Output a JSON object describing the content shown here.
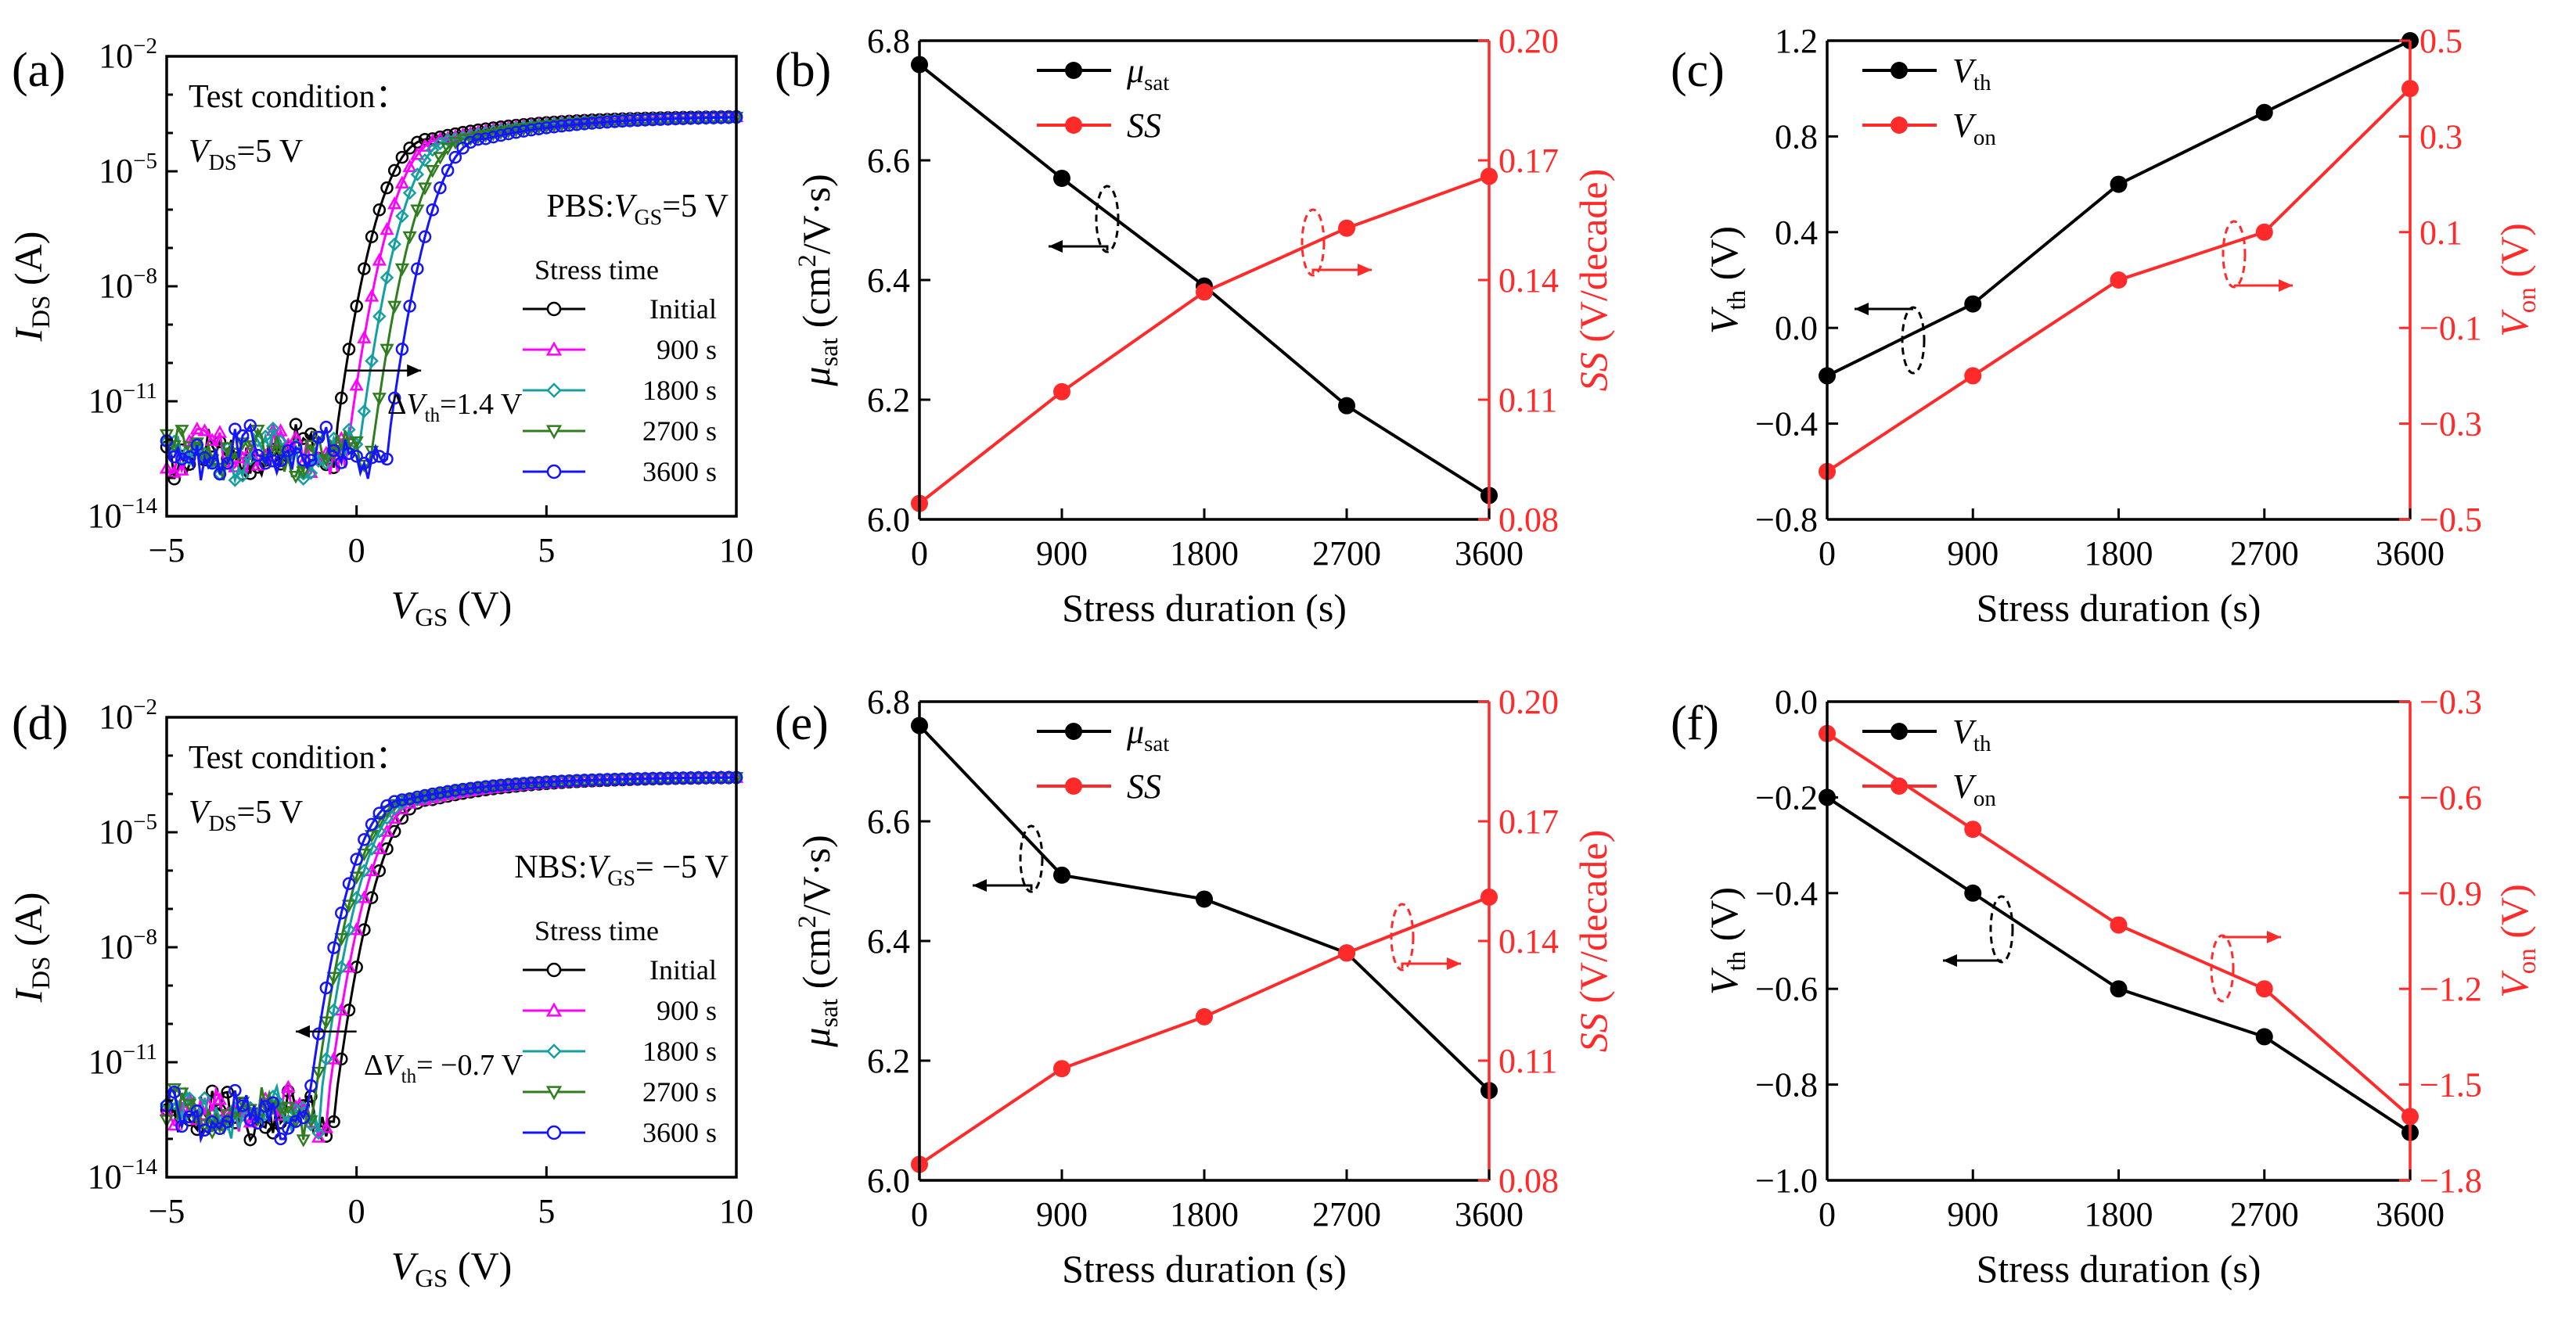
{
  "chart_data": [
    {
      "panel": "(a)",
      "type": "line",
      "xlabel": "V",
      "xlabel_sub": "GS",
      "xlabel_unit": " (V)",
      "ylabel": "I",
      "ylabel_sub": "DS",
      "ylabel_unit": " (A)",
      "xlim": [
        -5,
        10
      ],
      "xticks": [
        -5,
        0,
        5,
        10
      ],
      "xtick_labels": [
        "−5",
        "0",
        "5",
        "10"
      ],
      "ylim_log10": [
        -14,
        -2
      ],
      "ytick_exps": [
        -14,
        -11,
        -8,
        -5,
        -2
      ],
      "test_condition": "Test condition：",
      "vds_label": "V",
      "vds_sub": "DS",
      "vds_value": "=5 V",
      "stress_label": "PBS:",
      "stress_v": "V",
      "stress_sub": "GS",
      "stress_value": "=5 V",
      "legend_title": "Stress time",
      "delta_label": "ΔV",
      "delta_sub": "th",
      "delta_value": "=1.4 V",
      "series": [
        {
          "name": "Initial",
          "color": "#000000",
          "marker": "circle",
          "vth": -0.6
        },
        {
          "name": "900 s",
          "color": "#ff00ff",
          "marker": "tri-up",
          "vth": -0.25
        },
        {
          "name": "1800 s",
          "color": "#14a0a0",
          "marker": "diamond",
          "vth": 0.05
        },
        {
          "name": "2700 s",
          "color": "#2f7d1f",
          "marker": "tri-down",
          "vth": 0.4
        },
        {
          "name": "3600 s",
          "color": "#1414ff",
          "marker": "circle",
          "vth": 0.8
        }
      ]
    },
    {
      "panel": "(b)",
      "type": "line",
      "xlabel": "Stress duration (s)",
      "x": [
        0,
        900,
        1800,
        2700,
        3600
      ],
      "xtick_labels": [
        "0",
        "900",
        "1800",
        "2700",
        "3600"
      ],
      "ylabel": "μ",
      "ylabel_sub": "sat",
      "ylabel_unit": " (cm²/V·s)",
      "ylim": [
        6.0,
        6.8
      ],
      "yticks": [
        6.0,
        6.2,
        6.4,
        6.6,
        6.8
      ],
      "ytick_labels": [
        "6.0",
        "6.2",
        "6.4",
        "6.6",
        "6.8"
      ],
      "y2label": "SS (V/decade)",
      "y2lim": [
        0.08,
        0.2
      ],
      "y2ticks": [
        0.08,
        0.11,
        0.14,
        0.17,
        0.2
      ],
      "y2tick_labels": [
        "0.08",
        "0.11",
        "0.14",
        "0.17",
        "0.20"
      ],
      "series": [
        {
          "name": "μ",
          "name_sub": "sat",
          "axis": "left",
          "color": "#000000",
          "values": [
            6.76,
            6.57,
            6.39,
            6.19,
            6.04
          ]
        },
        {
          "name": "SS",
          "name_sub": "",
          "axis": "right",
          "color": "#ff2a2a",
          "values": [
            0.084,
            0.112,
            0.137,
            0.153,
            0.166
          ]
        }
      ]
    },
    {
      "panel": "(c)",
      "type": "line",
      "xlabel": "Stress duration (s)",
      "x": [
        0,
        900,
        1800,
        2700,
        3600
      ],
      "xtick_labels": [
        "0",
        "900",
        "1800",
        "2700",
        "3600"
      ],
      "ylabel": "V",
      "ylabel_sub": "th",
      "ylabel_unit": " (V)",
      "ylim": [
        -0.8,
        1.2
      ],
      "yticks": [
        -0.8,
        -0.4,
        0.0,
        0.4,
        0.8,
        1.2
      ],
      "ytick_labels": [
        "−0.8",
        "−0.4",
        "0.0",
        "0.4",
        "0.8",
        "1.2"
      ],
      "y2label": "V",
      "y2label_sub": "on",
      "y2label_unit": " (V)",
      "y2lim": [
        -0.5,
        0.5
      ],
      "y2ticks": [
        -0.5,
        -0.3,
        -0.1,
        0.1,
        0.3,
        0.5
      ],
      "y2tick_labels": [
        "−0.5",
        "−0.3",
        "−0.1",
        "0.1",
        "0.3",
        "0.5"
      ],
      "series": [
        {
          "name": "V",
          "name_sub": "th",
          "axis": "left",
          "color": "#000000",
          "values": [
            -0.2,
            0.1,
            0.6,
            0.9,
            1.2
          ]
        },
        {
          "name": "V",
          "name_sub": "on",
          "axis": "right",
          "color": "#ff2a2a",
          "values": [
            -0.4,
            -0.2,
            0.0,
            0.1,
            0.4
          ]
        }
      ]
    },
    {
      "panel": "(d)",
      "type": "line",
      "xlabel": "V",
      "xlabel_sub": "GS",
      "xlabel_unit": " (V)",
      "ylabel": "I",
      "ylabel_sub": "DS",
      "ylabel_unit": " (A)",
      "xlim": [
        -5,
        10
      ],
      "xticks": [
        -5,
        0,
        5,
        10
      ],
      "xtick_labels": [
        "−5",
        "0",
        "5",
        "10"
      ],
      "ylim_log10": [
        -14,
        -2
      ],
      "ytick_exps": [
        -14,
        -11,
        -8,
        -5,
        -2
      ],
      "test_condition": "Test condition：",
      "vds_label": "V",
      "vds_sub": "DS",
      "vds_value": "=5 V",
      "stress_label": "NBS:",
      "stress_v": "V",
      "stress_sub": "GS",
      "stress_value": "= −5 V",
      "legend_title": "Stress time",
      "delta_label": "ΔV",
      "delta_sub": "th",
      "delta_value": "= −0.7 V",
      "series": [
        {
          "name": "Initial",
          "color": "#000000",
          "marker": "circle",
          "vth": -0.6
        },
        {
          "name": "900 s",
          "color": "#ff00ff",
          "marker": "tri-up",
          "vth": -0.8
        },
        {
          "name": "1800 s",
          "color": "#14a0a0",
          "marker": "diamond",
          "vth": -1.0
        },
        {
          "name": "2700 s",
          "color": "#2f7d1f",
          "marker": "tri-down",
          "vth": -1.15
        },
        {
          "name": "3600 s",
          "color": "#1414ff",
          "marker": "circle",
          "vth": -1.3
        }
      ]
    },
    {
      "panel": "(e)",
      "type": "line",
      "xlabel": "Stress duration (s)",
      "x": [
        0,
        900,
        1800,
        2700,
        3600
      ],
      "xtick_labels": [
        "0",
        "900",
        "1800",
        "2700",
        "3600"
      ],
      "ylabel": "μ",
      "ylabel_sub": "sat",
      "ylabel_unit": " (cm²/V·s)",
      "ylim": [
        6.0,
        6.8
      ],
      "yticks": [
        6.0,
        6.2,
        6.4,
        6.6,
        6.8
      ],
      "ytick_labels": [
        "6.0",
        "6.2",
        "6.4",
        "6.6",
        "6.8"
      ],
      "y2label": "SS (V/decade)",
      "y2lim": [
        0.08,
        0.2
      ],
      "y2ticks": [
        0.08,
        0.11,
        0.14,
        0.17,
        0.2
      ],
      "y2tick_labels": [
        "0.08",
        "0.11",
        "0.14",
        "0.17",
        "0.20"
      ],
      "series": [
        {
          "name": "μ",
          "name_sub": "sat",
          "axis": "left",
          "color": "#000000",
          "values": [
            6.76,
            6.51,
            6.47,
            6.38,
            6.15
          ]
        },
        {
          "name": "SS",
          "name_sub": "",
          "axis": "right",
          "color": "#ff2a2a",
          "values": [
            0.084,
            0.108,
            0.121,
            0.137,
            0.151
          ]
        }
      ]
    },
    {
      "panel": "(f)",
      "type": "line",
      "xlabel": "Stress duration (s)",
      "x": [
        0,
        900,
        1800,
        2700,
        3600
      ],
      "xtick_labels": [
        "0",
        "900",
        "1800",
        "2700",
        "3600"
      ],
      "ylabel": "V",
      "ylabel_sub": "th",
      "ylabel_unit": " (V)",
      "ylim": [
        -1.0,
        0.0
      ],
      "yticks": [
        -1.0,
        -0.8,
        -0.6,
        -0.4,
        -0.2,
        0.0
      ],
      "ytick_labels": [
        "−1.0",
        "−0.8",
        "−0.6",
        "−0.4",
        "−0.2",
        "0.0"
      ],
      "y2label": "V",
      "y2label_sub": "on",
      "y2label_unit": " (V)",
      "y2lim": [
        -1.8,
        -0.3
      ],
      "y2ticks": [
        -1.8,
        -1.5,
        -1.2,
        -0.9,
        -0.6,
        -0.3
      ],
      "y2tick_labels": [
        "−1.8",
        "−1.5",
        "−1.2",
        "−0.9",
        "−0.6",
        "−0.3"
      ],
      "series": [
        {
          "name": "V",
          "name_sub": "th",
          "axis": "left",
          "color": "#000000",
          "values": [
            -0.2,
            -0.4,
            -0.6,
            -0.7,
            -0.9
          ]
        },
        {
          "name": "V",
          "name_sub": "on",
          "axis": "right",
          "color": "#ff2a2a",
          "values": [
            -0.4,
            -0.7,
            -1.0,
            -1.2,
            -1.6
          ]
        }
      ]
    }
  ]
}
